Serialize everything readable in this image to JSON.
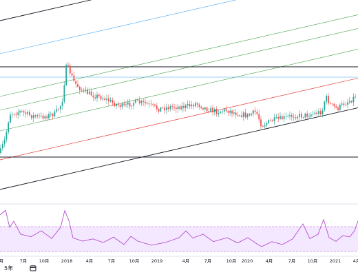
{
  "chart_data": [
    {
      "type": "candlestick",
      "x_tick_labels": [
        "月",
        "7月",
        "10月",
        "2018",
        "4月",
        "7月",
        "10月",
        "2019",
        "4月",
        "7月",
        "10月",
        "2020",
        "4月",
        "7月",
        "10月",
        "2021",
        "4月"
      ],
      "colors": {
        "up": "#26a69a",
        "down": "#ef5350",
        "channel_outer": "#131722",
        "channel_mid_red": "#e53935",
        "channel_green": "#43a047",
        "channel_blue": "#42a5f5",
        "channel_gray": "#9e9e9e",
        "horizontal_level": "#131722"
      },
      "grid": false,
      "legend": "none"
    },
    {
      "type": "line",
      "series_color": "#b44fc9",
      "band_fill": "#e9d5ff",
      "band_lines": "dashed",
      "grid": false,
      "legend": "none"
    }
  ],
  "footer": {
    "scale_label": "5年",
    "calendar_icon": "calendar-icon"
  }
}
